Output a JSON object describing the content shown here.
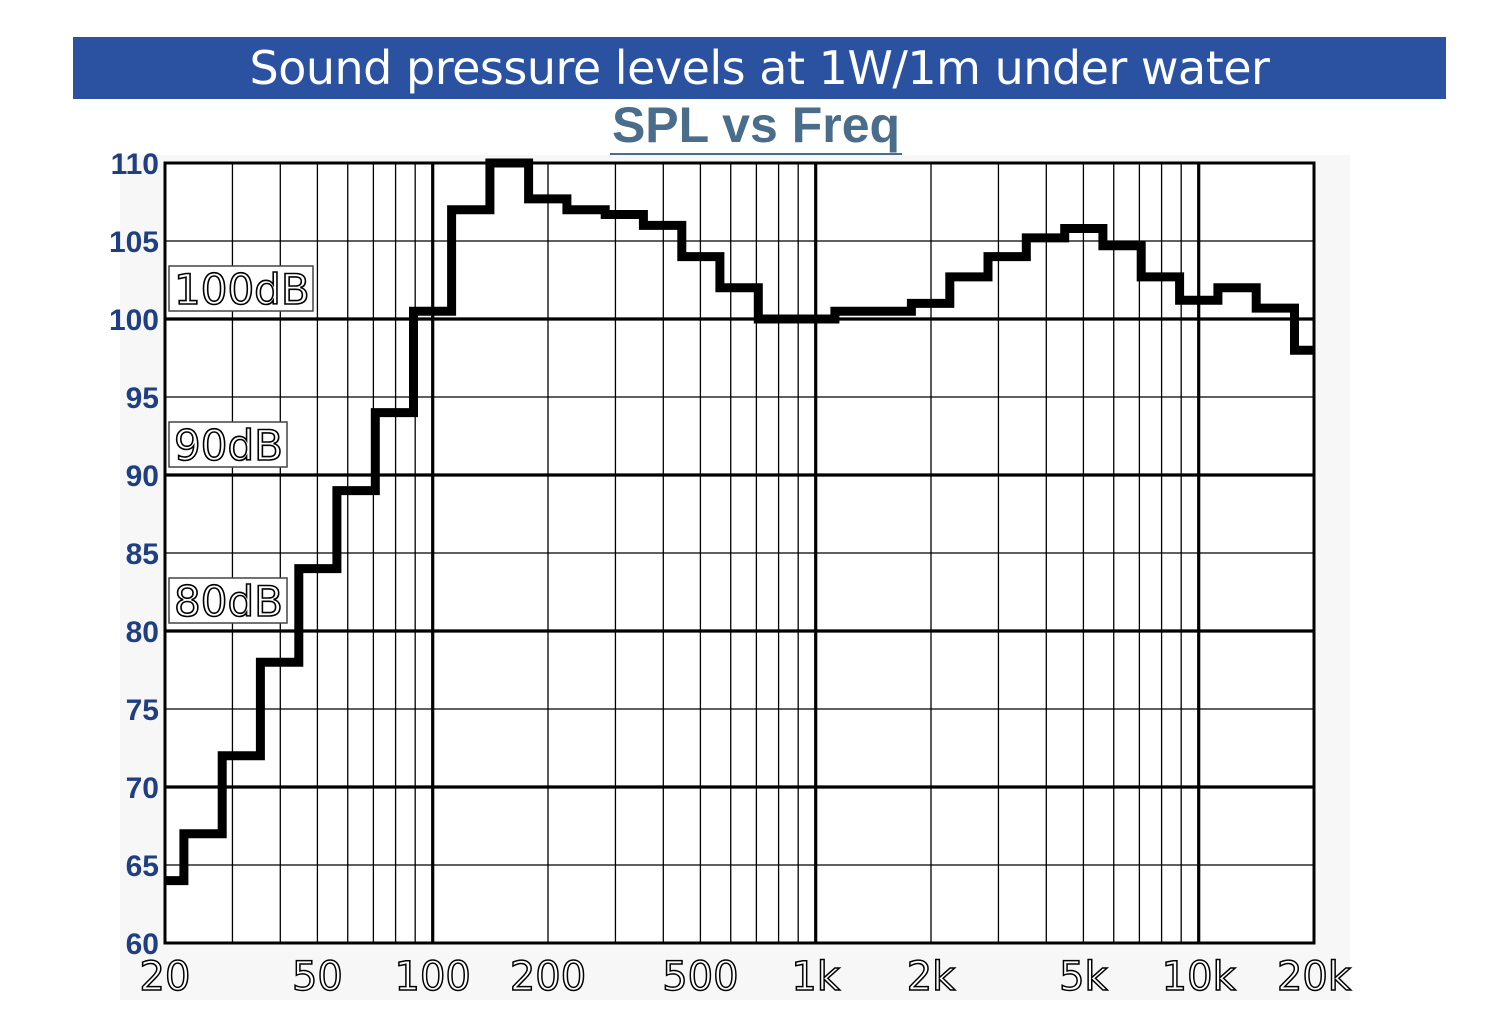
{
  "header": {
    "title": "Sound pressure levels at 1W/1m under water"
  },
  "colors": {
    "banner": "#2a52a0",
    "subtitle": "#4a6d8c",
    "ytick": "#1f3f82",
    "line": "#000000"
  },
  "chart_data": {
    "type": "line",
    "title": "SPL vs Freq",
    "xscale": "log",
    "xlim": [
      20,
      20000
    ],
    "ylim": [
      60,
      110
    ],
    "grid": true,
    "x_ticks": [
      {
        "value": 20,
        "label": "20"
      },
      {
        "value": 50,
        "label": "50"
      },
      {
        "value": 100,
        "label": "100"
      },
      {
        "value": 200,
        "label": "200"
      },
      {
        "value": 500,
        "label": "500"
      },
      {
        "value": 1000,
        "label": "1k"
      },
      {
        "value": 2000,
        "label": "2k"
      },
      {
        "value": 5000,
        "label": "5k"
      },
      {
        "value": 10000,
        "label": "10k"
      },
      {
        "value": 20000,
        "label": "20k"
      }
    ],
    "y_ticks": [
      {
        "value": 60,
        "label": "60"
      },
      {
        "value": 65,
        "label": "65"
      },
      {
        "value": 70,
        "label": "70"
      },
      {
        "value": 75,
        "label": "75"
      },
      {
        "value": 80,
        "label": "80"
      },
      {
        "value": 85,
        "label": "85"
      },
      {
        "value": 90,
        "label": "90"
      },
      {
        "value": 95,
        "label": "95"
      },
      {
        "value": 100,
        "label": "100"
      },
      {
        "value": 105,
        "label": "105"
      },
      {
        "value": 110,
        "label": "110"
      }
    ],
    "annotations": [
      {
        "text": "100dB",
        "y": 100
      },
      {
        "text": "90dB",
        "y": 90
      },
      {
        "text": "80dB",
        "y": 80
      }
    ],
    "series": [
      {
        "step": "band",
        "edges": [
          20,
          22.4,
          28.2,
          35.5,
          44.7,
          56.2,
          70.8,
          89.1,
          112,
          141,
          178,
          224,
          282,
          355,
          447,
          562,
          708,
          891,
          1122,
          1413,
          1778,
          2239,
          2818,
          3548,
          4467,
          5623,
          7079,
          8913,
          11220,
          14125,
          17783,
          20000
        ],
        "values": [
          64,
          67,
          72,
          78,
          84,
          89,
          94,
          100.5,
          107,
          110,
          107.7,
          107,
          106.7,
          106,
          104,
          102,
          100,
          100,
          100.5,
          100.5,
          101,
          102.7,
          104,
          105.2,
          105.8,
          104.7,
          102.7,
          101.2,
          102,
          100.7,
          98
        ]
      }
    ]
  }
}
